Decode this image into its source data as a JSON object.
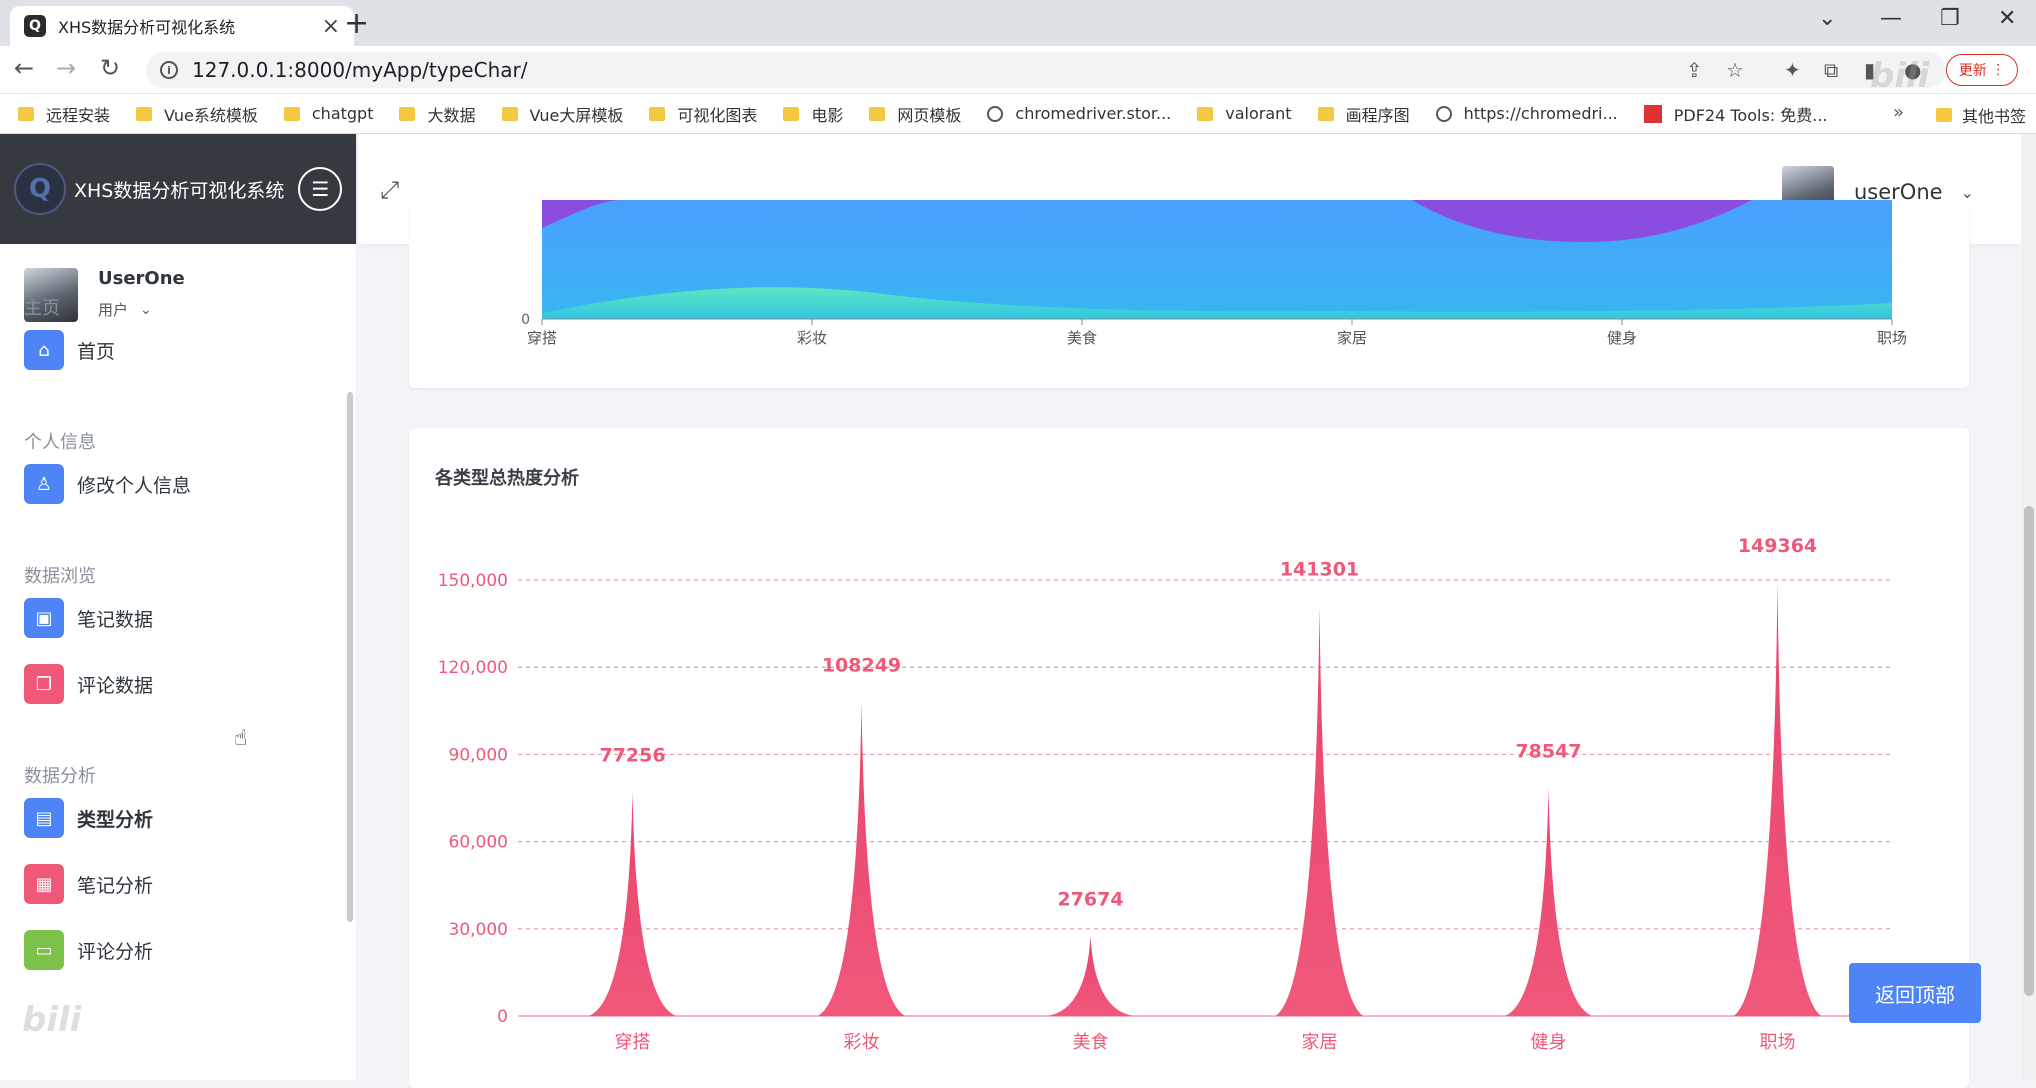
{
  "browser": {
    "tab_title": "XHS数据分析可视化系统",
    "url": "127.0.0.1:8000/myApp/typeChar/",
    "update_label": "更新",
    "bookmarks": [
      "远程安装",
      "Vue系统模板",
      "chatgpt",
      "大数据",
      "Vue大屏模板",
      "可视化图表",
      "电影",
      "网页模板",
      "chromedriver.stor...",
      "valorant",
      "画程序图",
      "https://chromedri...",
      "PDF24 Tools: 免费..."
    ],
    "bookmark_icons": [
      "folder",
      "folder",
      "folder",
      "folder",
      "folder",
      "folder",
      "folder",
      "folder",
      "globe",
      "folder",
      "folder",
      "globe",
      "pdf"
    ],
    "bookmarks_more": "»",
    "other_bookmarks": "其他书签"
  },
  "app": {
    "logo_text": "XHS数据分析可视化系统",
    "user": {
      "name": "UserOne",
      "role": "用户"
    },
    "header_user": "userOne",
    "back_to_top": "返回顶部"
  },
  "sidebar": {
    "sections": [
      {
        "label": "主页",
        "items": [
          {
            "label": "首页",
            "icon": "home-icon",
            "color": "#4e84f5"
          }
        ]
      },
      {
        "label": "个人信息",
        "items": [
          {
            "label": "修改个人信息",
            "icon": "user-icon",
            "color": "#4e84f5"
          }
        ]
      },
      {
        "label": "数据浏览",
        "items": [
          {
            "label": "笔记数据",
            "icon": "notebook-icon",
            "color": "#4e84f5"
          },
          {
            "label": "评论数据",
            "icon": "comments-icon",
            "color": "#f0587a"
          }
        ]
      },
      {
        "label": "数据分析",
        "items": [
          {
            "label": "类型分析",
            "icon": "window-icon",
            "color": "#4e84f5",
            "active": true
          },
          {
            "label": "笔记分析",
            "icon": "calendar-icon",
            "color": "#f0587a"
          },
          {
            "label": "评论分析",
            "icon": "chat-icon",
            "color": "#7cc24a"
          }
        ]
      }
    ]
  },
  "chart_data": [
    {
      "type": "area",
      "categories": [
        "穿搭",
        "彩妆",
        "美食",
        "家居",
        "健身",
        "职场"
      ],
      "y_tick_visible": "0",
      "colors": [
        "#8a4de0",
        "#46a9ff",
        "#3ed6c9"
      ],
      "note_visible": "partially scrolled; only bottom of stacked area visible"
    },
    {
      "type": "bar",
      "title": "各类型总热度分析",
      "categories": [
        "穿搭",
        "彩妆",
        "美食",
        "家居",
        "健身",
        "职场"
      ],
      "values": [
        77256,
        108249,
        27674,
        141301,
        78547,
        149364
      ],
      "ylim": [
        0,
        150000
      ],
      "yticks": [
        0,
        30000,
        60000,
        90000,
        120000,
        150000
      ],
      "ytick_labels": [
        "0",
        "30,000",
        "60,000",
        "90,000",
        "120,000",
        "150,000"
      ],
      "grid": true,
      "color": "#f0587a",
      "bar_shape": "pictorial spike"
    }
  ]
}
